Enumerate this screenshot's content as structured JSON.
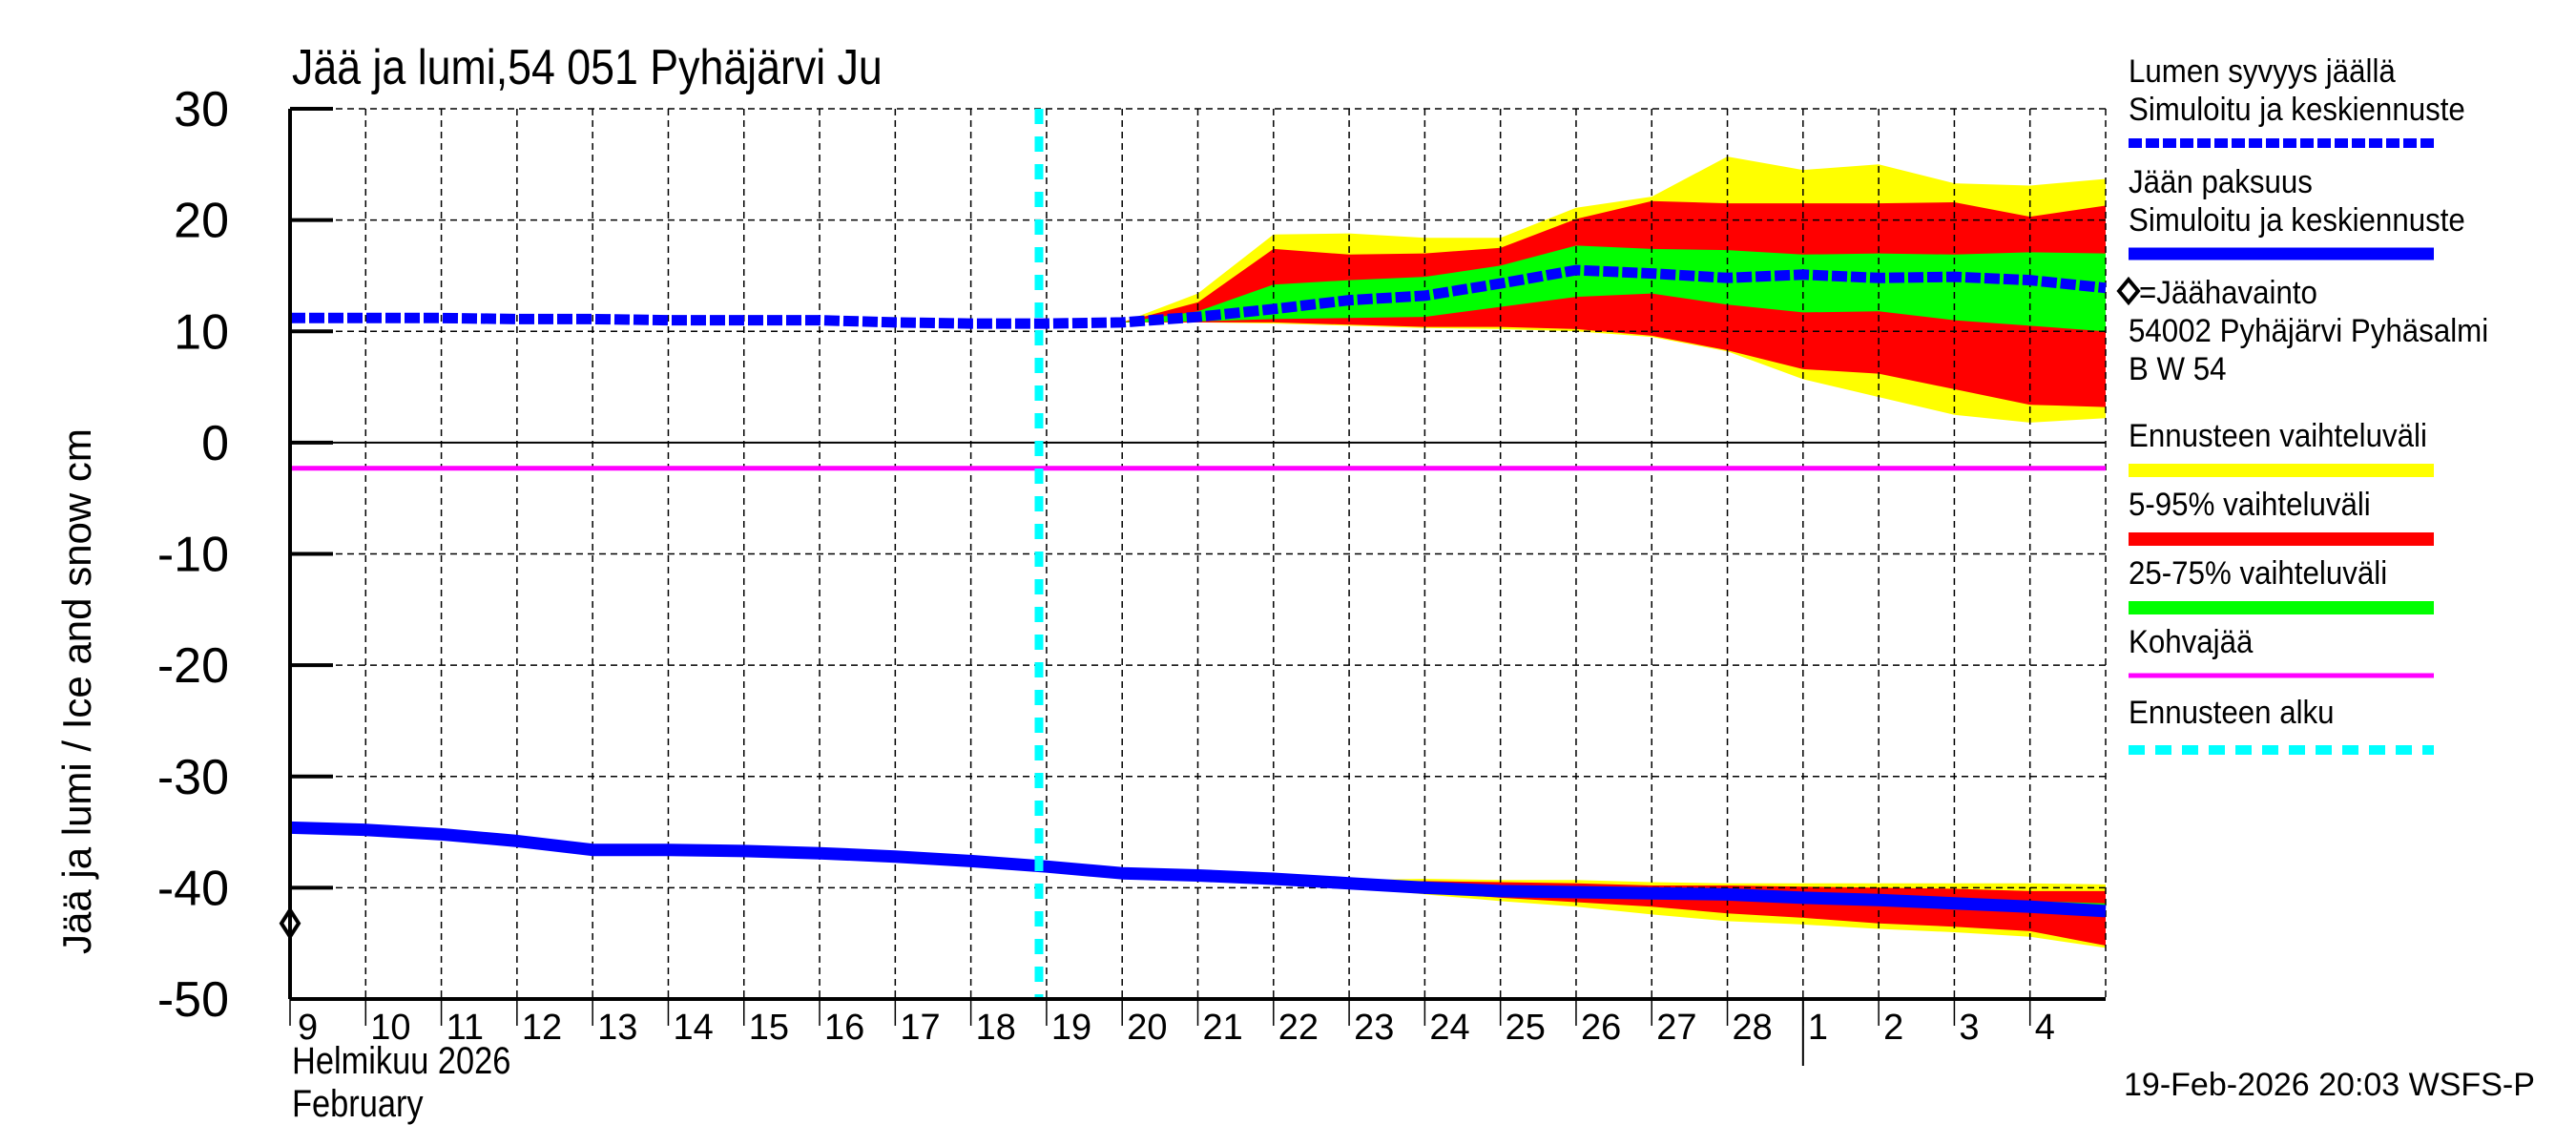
{
  "chart_data": {
    "type": "area",
    "title": "Jää ja lumi,54 051 Pyhäjärvi Ju",
    "ylabel": "Jää ja lumi / Ice and snow    cm",
    "xlabel_lines": [
      "Helmikuu  2026",
      "February"
    ],
    "ylim": [
      -50,
      30
    ],
    "yticks": [
      30,
      20,
      10,
      0,
      -10,
      -20,
      -30,
      -40,
      -50
    ],
    "grid": true,
    "x_ticks": [
      {
        "day": 0,
        "label": "9"
      },
      {
        "day": 1,
        "label": "10"
      },
      {
        "day": 2,
        "label": "11"
      },
      {
        "day": 3,
        "label": "12"
      },
      {
        "day": 4,
        "label": "13"
      },
      {
        "day": 5,
        "label": "14"
      },
      {
        "day": 6,
        "label": "15"
      },
      {
        "day": 7,
        "label": "16"
      },
      {
        "day": 8,
        "label": "17"
      },
      {
        "day": 9,
        "label": "18"
      },
      {
        "day": 10,
        "label": "19"
      },
      {
        "day": 11,
        "label": "20"
      },
      {
        "day": 12,
        "label": "21"
      },
      {
        "day": 13,
        "label": "22"
      },
      {
        "day": 14,
        "label": "23"
      },
      {
        "day": 15,
        "label": "24"
      },
      {
        "day": 16,
        "label": "25"
      },
      {
        "day": 17,
        "label": "26"
      },
      {
        "day": 18,
        "label": "27"
      },
      {
        "day": 19,
        "label": "28"
      },
      {
        "day": 20,
        "label": "1"
      },
      {
        "day": 21,
        "label": "2"
      },
      {
        "day": 22,
        "label": "3"
      },
      {
        "day": 23,
        "label": "4"
      }
    ],
    "x_range_days": [
      0,
      24
    ],
    "month_separator_day": 20,
    "forecast_start_day": 9.9,
    "kohvajaa_level": -2.3,
    "observation": {
      "day": 0,
      "value": -43.2,
      "label": "Jäähavainto"
    },
    "snow": {
      "name": "Lumen syvyys jäällä – Simuloitu ja keskiennuste",
      "x": [
        0,
        1,
        2,
        3,
        4,
        5,
        6,
        7,
        8,
        9,
        10,
        11,
        12,
        13,
        14,
        15,
        16,
        17,
        18,
        19,
        20,
        21,
        22,
        23,
        24
      ],
      "median": [
        11.2,
        11.2,
        11.2,
        11.1,
        11.1,
        11.0,
        11.0,
        11.0,
        10.8,
        10.7,
        10.7,
        10.8,
        11.3,
        12.0,
        12.8,
        13.2,
        14.3,
        15.5,
        15.2,
        14.8,
        15.1,
        14.8,
        14.9,
        14.6,
        13.9
      ],
      "band_x": [
        11,
        12,
        13,
        14,
        15,
        16,
        17,
        18,
        19,
        20,
        21,
        22,
        23,
        24
      ],
      "range_hi": [
        10.8,
        13.4,
        18.7,
        18.8,
        18.4,
        18.4,
        21.1,
        22.1,
        25.7,
        24.5,
        25.0,
        23.3,
        23.1,
        23.7
      ],
      "range_lo": [
        10.8,
        10.8,
        10.7,
        10.5,
        10.3,
        10.2,
        10.0,
        9.5,
        8.2,
        5.7,
        4.1,
        2.5,
        1.8,
        2.2
      ],
      "p95": [
        10.8,
        12.6,
        17.4,
        16.9,
        17.0,
        17.5,
        20.1,
        21.7,
        21.5,
        21.5,
        21.5,
        21.6,
        20.3,
        21.3
      ],
      "p5": [
        10.8,
        10.8,
        10.8,
        10.6,
        10.4,
        10.4,
        10.2,
        9.6,
        8.3,
        6.6,
        6.2,
        4.8,
        3.4,
        3.2
      ],
      "p75": [
        10.8,
        11.8,
        14.2,
        14.6,
        14.9,
        15.9,
        17.7,
        17.4,
        17.3,
        16.9,
        17.0,
        16.9,
        17.1,
        17.0
      ],
      "p25": [
        10.8,
        10.9,
        11.1,
        11.2,
        11.3,
        12.2,
        13.1,
        13.4,
        12.4,
        11.7,
        11.8,
        11.0,
        10.5,
        10.0
      ]
    },
    "ice": {
      "name": "Jään paksuus – Simuloitu ja keskiennuste",
      "x": [
        0,
        1,
        2,
        3,
        4,
        5,
        6,
        7,
        8,
        9,
        10,
        11,
        12,
        13,
        14,
        15,
        16,
        17,
        18,
        19,
        20,
        21,
        22,
        23,
        24
      ],
      "median": [
        -34.6,
        -34.8,
        -35.2,
        -35.8,
        -36.6,
        -36.6,
        -36.7,
        -36.9,
        -37.2,
        -37.6,
        -38.1,
        -38.7,
        -38.9,
        -39.2,
        -39.6,
        -40.0,
        -40.3,
        -40.4,
        -40.5,
        -40.6,
        -40.9,
        -41.1,
        -41.4,
        -41.7,
        -42.1
      ],
      "band_x": [
        11,
        12,
        13,
        14,
        15,
        16,
        17,
        18,
        19,
        20,
        21,
        22,
        23,
        24
      ],
      "range_hi": [
        -38.7,
        -38.8,
        -39.0,
        -39.3,
        -39.2,
        -39.3,
        -39.3,
        -39.5,
        -39.6,
        -39.6,
        -39.6,
        -39.6,
        -39.6,
        -39.7
      ],
      "range_lo": [
        -38.7,
        -39.0,
        -39.4,
        -39.9,
        -40.6,
        -41.2,
        -41.7,
        -42.4,
        -43.0,
        -43.3,
        -43.7,
        -44.0,
        -44.4,
        -45.4
      ],
      "p95": [
        -38.7,
        -38.8,
        -39.1,
        -39.4,
        -39.4,
        -39.5,
        -39.6,
        -39.8,
        -39.8,
        -39.9,
        -40.0,
        -40.1,
        -40.3,
        -40.3
      ],
      "p5": [
        -38.7,
        -38.9,
        -39.3,
        -39.8,
        -40.4,
        -40.9,
        -41.3,
        -41.7,
        -42.3,
        -42.7,
        -43.2,
        -43.5,
        -43.9,
        -45.2
      ],
      "p75": [
        -38.7,
        -38.8,
        -39.1,
        -39.5,
        -39.8,
        -40.1,
        -40.2,
        -40.3,
        -40.4,
        -40.6,
        -40.8,
        -41.0,
        -41.2,
        -41.4
      ],
      "p25": [
        -38.7,
        -38.9,
        -39.2,
        -39.7,
        -40.1,
        -40.4,
        -40.6,
        -40.7,
        -40.8,
        -41.2,
        -41.5,
        -41.8,
        -42.1,
        -42.5
      ]
    },
    "colors": {
      "snow_line": "#0000ff",
      "ice_line": "#0000ff",
      "range": "#ffff00",
      "p5_95": "#ff0000",
      "p25_75": "#00ff00",
      "kohvajaa": "#ff00ff",
      "forecast_start": "#00ffff",
      "grid": "#000000"
    }
  },
  "legend": {
    "items": [
      {
        "label_lines": [
          "Lumen syvyys jäällä",
          "Simuloitu ja keskiennuste"
        ],
        "style": "dashed-thick",
        "color": "#0000ff"
      },
      {
        "label_lines": [
          "Jään paksuus",
          "Simuloitu ja keskiennuste"
        ],
        "style": "solid-thick",
        "color": "#0000ff"
      },
      {
        "label_lines": [
          "=Jäähavainto",
          "54002 Pyhäjärvi Pyhäsalmi",
          " B W 54"
        ],
        "style": "diamond",
        "color": "#000000"
      },
      {
        "label_lines": [
          "Ennusteen vaihteluväli"
        ],
        "style": "bar",
        "color": "#ffff00"
      },
      {
        "label_lines": [
          "5-95% vaihteluväli"
        ],
        "style": "bar",
        "color": "#ff0000"
      },
      {
        "label_lines": [
          "25-75% vaihteluväli"
        ],
        "style": "bar",
        "color": "#00ff00"
      },
      {
        "label_lines": [
          "Kohvajää"
        ],
        "style": "thin",
        "color": "#ff00ff"
      },
      {
        "label_lines": [
          "Ennusteen alku"
        ],
        "style": "dashed-cyan",
        "color": "#00ffff"
      }
    ]
  },
  "footer": {
    "timestamp": "19-Feb-2026 20:03 WSFS-P"
  }
}
